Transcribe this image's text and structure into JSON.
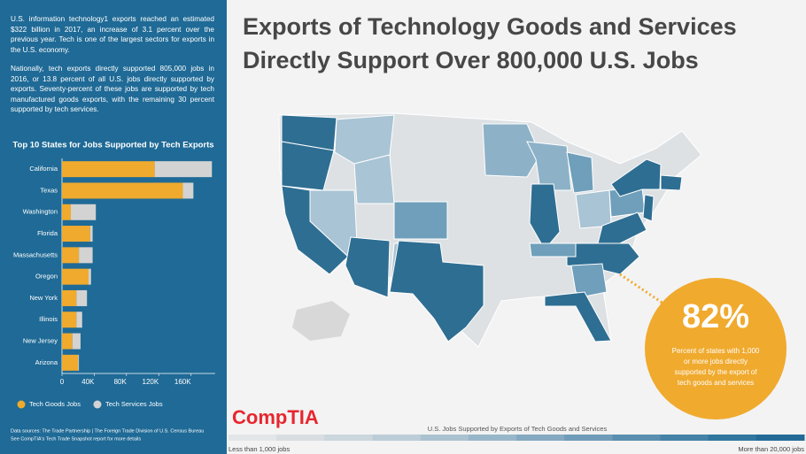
{
  "intro": [
    "U.S. information technology1 exports reached an estimated $322 billion in 2017, an increase of 3.1 percent over the previous year. Tech is one of the largest sectors for exports in the U.S. economy.",
    "Nationally, tech exports directly supported 805,000 jobs in 2016, or 13.8 percent of all U.S. jobs directly supported by exports. Seventy-percent of these jobs are supported by tech manufactured goods exports, with the remaining 30 percent supported by tech services."
  ],
  "title": [
    "Exports of Technology Goods and Services",
    "Directly Support Over 800,000 U.S. Jobs"
  ],
  "chart_data": {
    "type": "bar",
    "orientation": "horizontal",
    "stacked": true,
    "title": "Top 10 States for Jobs Supported by Tech Exports",
    "categories": [
      "California",
      "Texas",
      "Washington",
      "Florida",
      "Massachusetts",
      "Oregon",
      "New York",
      "Illinois",
      "New Jersey",
      "Arizona"
    ],
    "series": [
      {
        "name": "Tech Goods Jobs",
        "color": "#f0aa2e",
        "values": [
          115000,
          150000,
          11000,
          35000,
          21000,
          33000,
          18000,
          18000,
          13000,
          20000
        ]
      },
      {
        "name": "Tech Services Jobs",
        "color": "#d3d3d3",
        "values": [
          71000,
          13000,
          31000,
          3000,
          17000,
          3000,
          13000,
          7000,
          10000,
          1000
        ]
      }
    ],
    "xlim": [
      0,
      190000
    ],
    "xticks": [
      0,
      {
        "value": 40000,
        "label": "40K"
      },
      {
        "value": 80000,
        "label": "80K"
      },
      {
        "value": 120000,
        "label": "120K"
      },
      {
        "value": 160000,
        "label": "160K"
      }
    ],
    "legend": "bottom"
  },
  "callout": {
    "value": "82%",
    "text": [
      "Percent of states with 1,000",
      "or more jobs directly",
      "supported by the export of",
      "tech goods and services"
    ]
  },
  "map_legend": {
    "title": "U.S. Jobs Supported by Exports of Tech Goods and Services",
    "low": "Less than 1,000 jobs",
    "high": "More than 20,000 jobs"
  },
  "sources": [
    "Data sources: The Trade Partnership | The Foreign Trade Division of U.S. Census Bureau",
    "See CompTIA's Tech Trade Snapshot report for more details"
  ],
  "logo": "CompTIA"
}
